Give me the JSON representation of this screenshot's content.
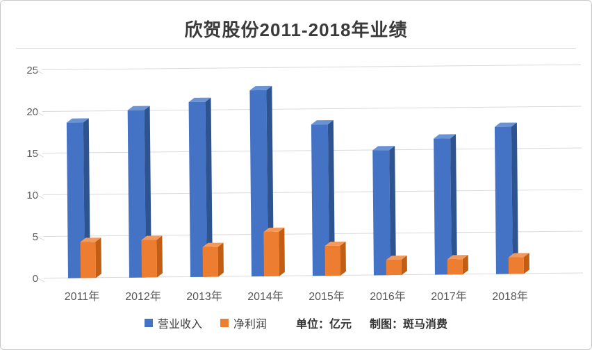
{
  "title": "欣贺股份2011-2018年业绩",
  "footer": {
    "unit_label": "单位：亿元",
    "credit_label": "制图：斑马消费"
  },
  "colors": {
    "gridline": "#d9d9d9",
    "axis_text": "#595959",
    "title_text": "#3a3a3a",
    "series": [
      {
        "front": "#4472C4",
        "top": "#6A93D6",
        "side": "#2E5391"
      },
      {
        "front": "#ED7D31",
        "top": "#F29A5E",
        "side": "#C25D14"
      }
    ]
  },
  "chart_data": {
    "type": "bar",
    "style": "3d-column",
    "title": "欣贺股份2011-2018年业绩",
    "categories": [
      "2011年",
      "2012年",
      "2013年",
      "2014年",
      "2015年",
      "2016年",
      "2017年",
      "2018年"
    ],
    "series": [
      {
        "name": "营业收入",
        "color": "#4472C4",
        "values": [
          18.7,
          20.1,
          21.0,
          22.3,
          18.2,
          15.0,
          16.3,
          17.7
        ]
      },
      {
        "name": "净利润",
        "color": "#ED7D31",
        "values": [
          4.3,
          4.5,
          3.6,
          5.3,
          3.6,
          1.8,
          1.8,
          2.0
        ]
      }
    ],
    "xlabel": "",
    "ylabel": "",
    "ylim": [
      0,
      25
    ],
    "yticks": [
      0,
      5,
      10,
      15,
      20,
      25
    ],
    "grid": true,
    "legend_position": "bottom"
  }
}
